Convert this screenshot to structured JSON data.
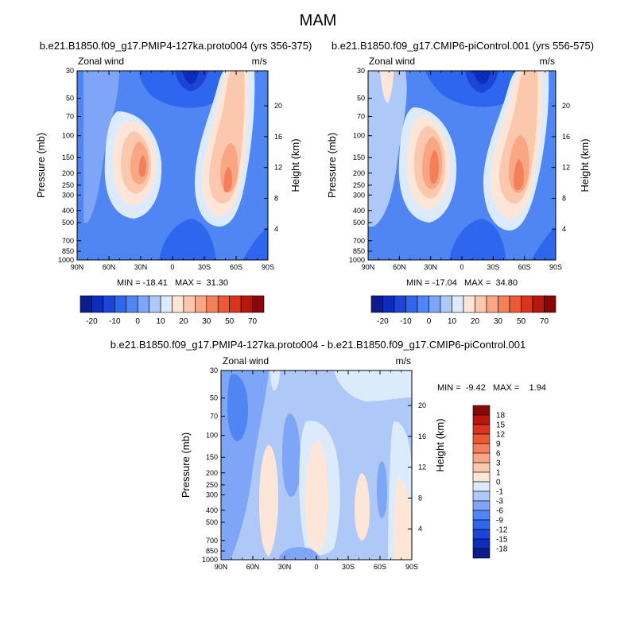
{
  "chart_data": {
    "type": "heatmap",
    "main_title": "MAM",
    "panels": [
      {
        "id": "p1",
        "title": "b.e21.B1850.f09_g17.PMIP4-127ka.proto004 (yrs 356-375)",
        "left_label": "Zonal wind",
        "right_label": "m/s",
        "ylabel": "Pressure (mb)",
        "ylabel_right": "Height (km)",
        "min_max_text": "MIN = -18.41   MAX =  31.30",
        "min": -18.41,
        "max": 31.3
      },
      {
        "id": "p2",
        "title": "b.e21.B1850.f09_g17.CMIP6-piControl.001 (yrs 556-575)",
        "left_label": "Zonal wind",
        "right_label": "m/s",
        "ylabel": "Pressure (mb)",
        "ylabel_right": "Height (km)",
        "min_max_text": "MIN = -17.04   MAX =  34.80",
        "min": -17.04,
        "max": 34.8
      },
      {
        "id": "p3",
        "title": "b.e21.B1850.f09_g17.PMIP4-127ka.proto004 - b.e21.B1850.f09_g17.CMIP6-piControl.001",
        "left_label": "Zonal wind",
        "right_label": "m/s",
        "ylabel": "Pressure (mb)",
        "ylabel_right": "Height (km)",
        "min_max_text": "MIN =  -9.42   MAX =    1.94",
        "min": -9.42,
        "max": 1.94
      }
    ],
    "x_ticks": [
      "90N",
      "60N",
      "30N",
      "0",
      "30S",
      "60S",
      "90S"
    ],
    "x_lat_values": [
      90,
      60,
      30,
      0,
      -30,
      -60,
      -90
    ],
    "pressure_ticks": [
      30,
      50,
      70,
      100,
      150,
      200,
      250,
      300,
      400,
      500,
      700,
      850,
      1000
    ],
    "pressure_range": [
      30,
      1000
    ],
    "height_ticks_p12": [
      4,
      8,
      12,
      16,
      20
    ],
    "height_ticks_p3": [
      4,
      8,
      12,
      16,
      20
    ],
    "colorbar_full": {
      "tick_labels": [
        "-20",
        "-10",
        "0",
        "10",
        "20",
        "30",
        "50",
        "70"
      ],
      "levels": [
        -25,
        -20,
        -15,
        -10,
        -5,
        0,
        5,
        10,
        15,
        20,
        25,
        30,
        40,
        50,
        60,
        70
      ],
      "colors": [
        "#0b1d8c",
        "#0c2cbc",
        "#1a45d8",
        "#2f66ee",
        "#4f86f4",
        "#7fa6f6",
        "#aec9f7",
        "#dcebfb",
        "#fde6d8",
        "#fcc8ad",
        "#f8a683",
        "#f3805a",
        "#ea5a35",
        "#d9341d",
        "#b8170f",
        "#8a0707"
      ]
    },
    "colorbar_diff": {
      "tick_labels": [
        "18",
        "15",
        "12",
        "9",
        "6",
        "3",
        "1",
        "0",
        "-1",
        "-3",
        "-6",
        "-9",
        "-12",
        "-15",
        "-18"
      ],
      "colors": [
        "#8a0707",
        "#b8170f",
        "#d9341d",
        "#ea5a35",
        "#f3805a",
        "#f8a683",
        "#fcc8ad",
        "#fde6d8",
        "#dcebfb",
        "#aec9f7",
        "#7fa6f6",
        "#4f86f4",
        "#2f66ee",
        "#1a45d8",
        "#0c2cbc",
        "#0b1d8c"
      ]
    }
  }
}
